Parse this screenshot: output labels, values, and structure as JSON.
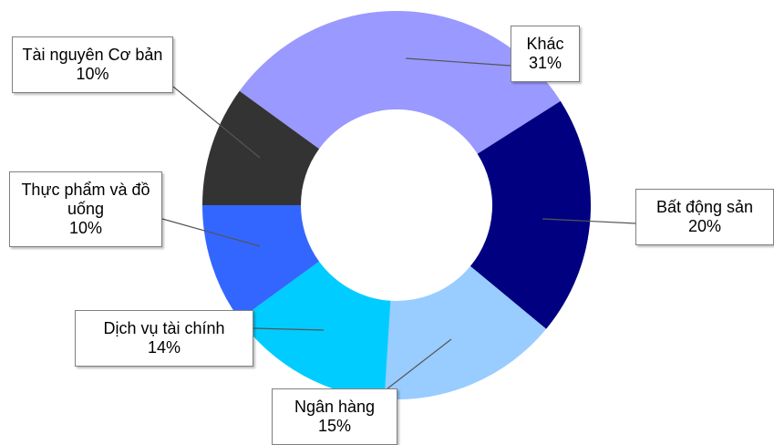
{
  "chart_data": {
    "type": "donut",
    "categories": [
      "Khác",
      "Bất động sản",
      "Ngân hàng",
      "Dịch vụ tài chính",
      "Thực phẩm và đồ uống",
      "Tài nguyên Cơ bản"
    ],
    "values": [
      31,
      20,
      15,
      14,
      10,
      10
    ],
    "value_labels": [
      "31%",
      "20%",
      "15%",
      "14%",
      "10%",
      "10%"
    ],
    "colors": [
      "#9999ff",
      "#000080",
      "#99ccff",
      "#00ccff",
      "#3366ff",
      "#333333"
    ]
  }
}
